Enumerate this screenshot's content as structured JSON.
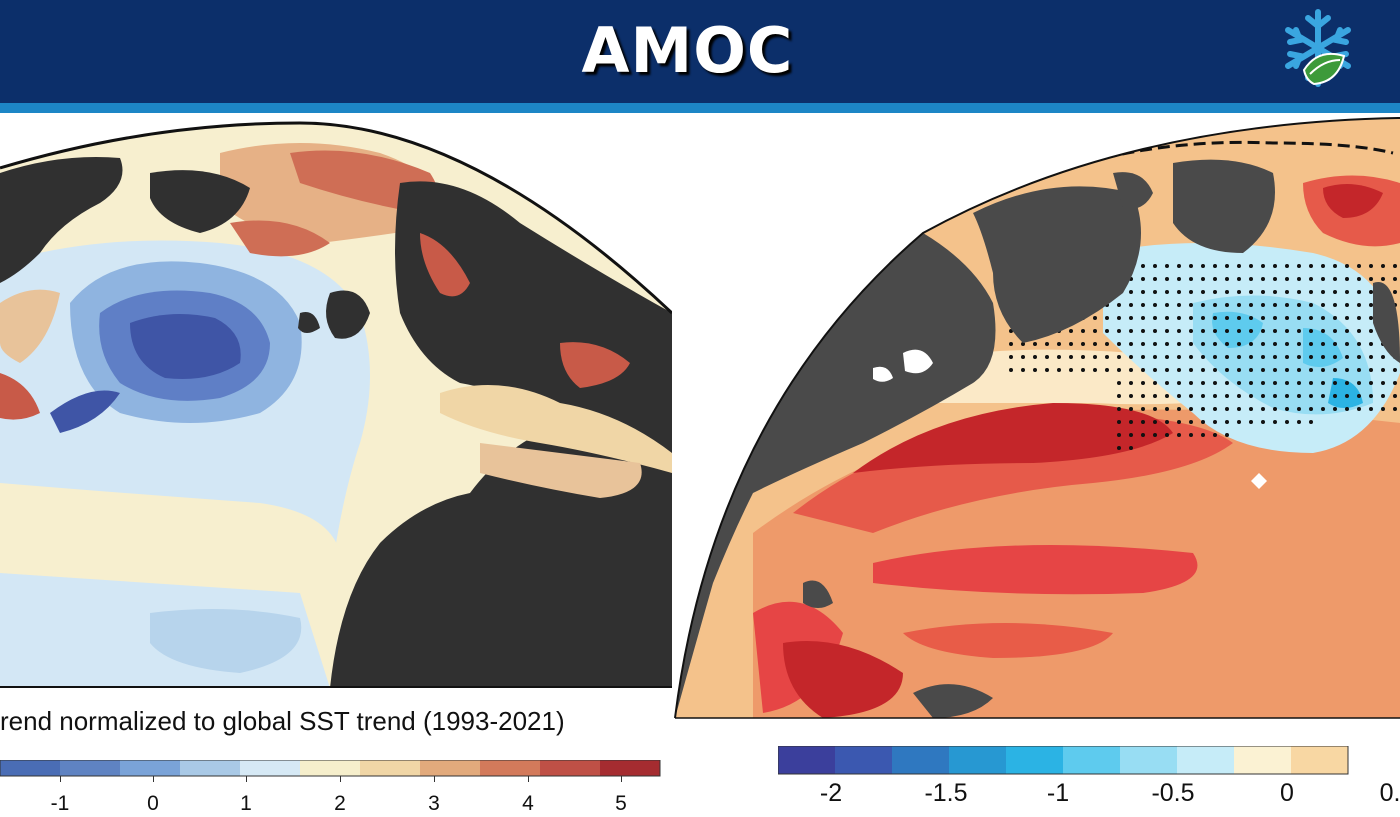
{
  "header": {
    "title": "AMOC",
    "logo_icon": "snowflake-logo-icon",
    "background": "#0c2f6a",
    "stripe": "#1d86c6"
  },
  "left_panel": {
    "colorbar_title": "rend normalized to global SST trend (1993-2021)",
    "colorbar_colors": [
      "#5f83c2",
      "#7aa3d8",
      "#a9c9e6",
      "#d6e9f5",
      "#f6efcc",
      "#f0d6a6",
      "#e2aa7c",
      "#d37a5b",
      "#bf5046",
      "#a52c30"
    ],
    "colorbar_ticks": [
      "-1",
      "0",
      "1",
      "2",
      "3",
      "4",
      "5"
    ]
  },
  "right_panel": {
    "colorbar_colors": [
      "#3b3f9c",
      "#3b58b0",
      "#2f78c0",
      "#2798d2",
      "#2bb3e4",
      "#5ecbee",
      "#98ddf3",
      "#c6ecf8",
      "#fbf2d3",
      "#f8d7a3"
    ],
    "colorbar_ticks": [
      "-2",
      "-1.5",
      "-1",
      "-0.5",
      "0",
      "0."
    ]
  }
}
